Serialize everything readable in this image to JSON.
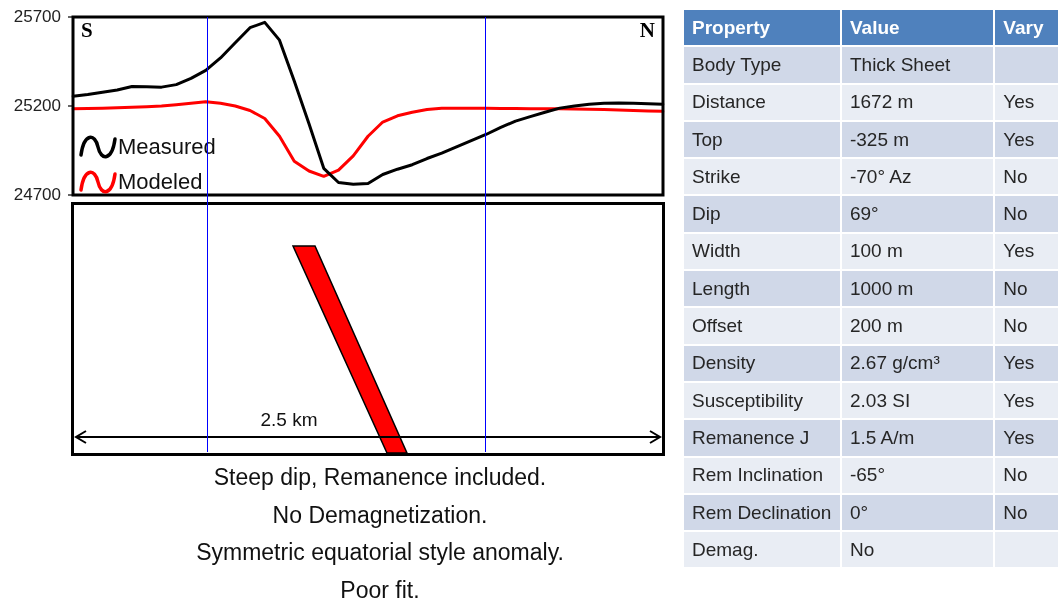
{
  "chart_data": [
    {
      "type": "line",
      "categories": [
        null,
        null,
        null,
        null,
        null,
        null,
        null,
        null,
        null,
        null,
        null,
        null,
        null,
        null,
        null,
        null,
        null,
        null,
        null,
        null,
        null,
        null,
        null,
        null,
        null,
        null,
        null,
        null,
        null,
        null,
        null,
        null,
        null,
        null,
        null,
        null,
        null,
        null,
        null,
        null,
        null
      ],
      "ylim": [
        24700,
        25700
      ],
      "yticks": [
        24700,
        25200,
        25700
      ],
      "tick_labels": "y",
      "grid": false,
      "legend": "left",
      "marker": "none",
      "line_style": "solid",
      "series": [
        {
          "name": "Measured",
          "color": "#000000",
          "values": [
            25255,
            25265,
            25277,
            25290,
            25310,
            25308,
            25306,
            25320,
            25355,
            25400,
            25470,
            25555,
            25640,
            25670,
            25570,
            25340,
            25100,
            24850,
            24770,
            24760,
            24765,
            24815,
            24845,
            24870,
            24905,
            24935,
            24970,
            25005,
            25040,
            25080,
            25115,
            25140,
            25165,
            25188,
            25200,
            25210,
            25215,
            25217,
            25215,
            25212,
            25210
          ]
        },
        {
          "name": "Modeled",
          "color": "#ff0000",
          "values": [
            25185,
            25186,
            25188,
            25190,
            25193,
            25196,
            25200,
            25207,
            25215,
            25224,
            25215,
            25200,
            25175,
            25130,
            25030,
            24890,
            24835,
            24805,
            24840,
            24920,
            25030,
            25110,
            25145,
            25165,
            25180,
            25187,
            25187,
            25187,
            25187,
            25186,
            25186,
            25185,
            25185,
            25184,
            25183,
            25182,
            25180,
            25178,
            25175,
            25172,
            25170
          ]
        }
      ],
      "annotations": [
        "S",
        "N",
        "2.5 km",
        "Steep dip, Remanence included.",
        "No Demagnetization.",
        "Symmetric equatorial style anomaly.",
        "Poor fit."
      ]
    },
    {
      "type": "other",
      "categories": [
        "Property",
        "Value",
        "Vary"
      ],
      "y_categories": [
        "Body Type",
        "Distance",
        "Top",
        "Strike",
        "Dip",
        "Width",
        "Length",
        "Offset",
        "Density",
        "Susceptibility",
        "Remanence  J",
        "Rem Inclination",
        "Rem Declination",
        "Demag."
      ],
      "cell_labels": [
        [
          "Thick Sheet",
          null
        ],
        [
          "1672 m",
          "Yes"
        ],
        [
          "-325 m",
          "Yes"
        ],
        [
          "-70° Az",
          "No"
        ],
        [
          "69°",
          "No"
        ],
        [
          "100 m",
          "Yes"
        ],
        [
          "1000 m",
          "No"
        ],
        [
          "200 m",
          "No"
        ],
        [
          "2.67 g/cm³",
          "Yes"
        ],
        [
          "2.03 SI",
          "Yes"
        ],
        [
          "1.5 A/m",
          "Yes"
        ],
        [
          "-65°",
          "No"
        ],
        [
          "0°",
          "No"
        ],
        [
          "No",
          null
        ]
      ],
      "colors": [
        "#4f81bd",
        "#4f81bd",
        "#4f81bd"
      ]
    }
  ]
}
